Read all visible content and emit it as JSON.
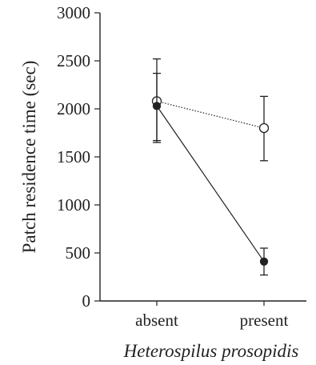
{
  "chart_data": {
    "type": "line",
    "categories": [
      "absent",
      "present"
    ],
    "xlabel": "Heterospilus prosopidis",
    "ylabel": "Patch residence time (sec)",
    "ylim": [
      0,
      3000
    ],
    "yticks": [
      "0",
      "500",
      "1000",
      "1500",
      "2000",
      "2500",
      "3000"
    ],
    "grid": false,
    "series": [
      {
        "marker": "filled-circle",
        "line_style": "solid",
        "color": "#222222",
        "values": [
          2030,
          410
        ],
        "error_low": [
          1670,
          270
        ],
        "error_high": [
          2370,
          550
        ]
      },
      {
        "marker": "open-circle",
        "line_style": "dotted",
        "color": "#222222",
        "values": [
          2080,
          1800
        ],
        "error_low": [
          1650,
          1460
        ],
        "error_high": [
          2520,
          2130
        ]
      }
    ]
  }
}
